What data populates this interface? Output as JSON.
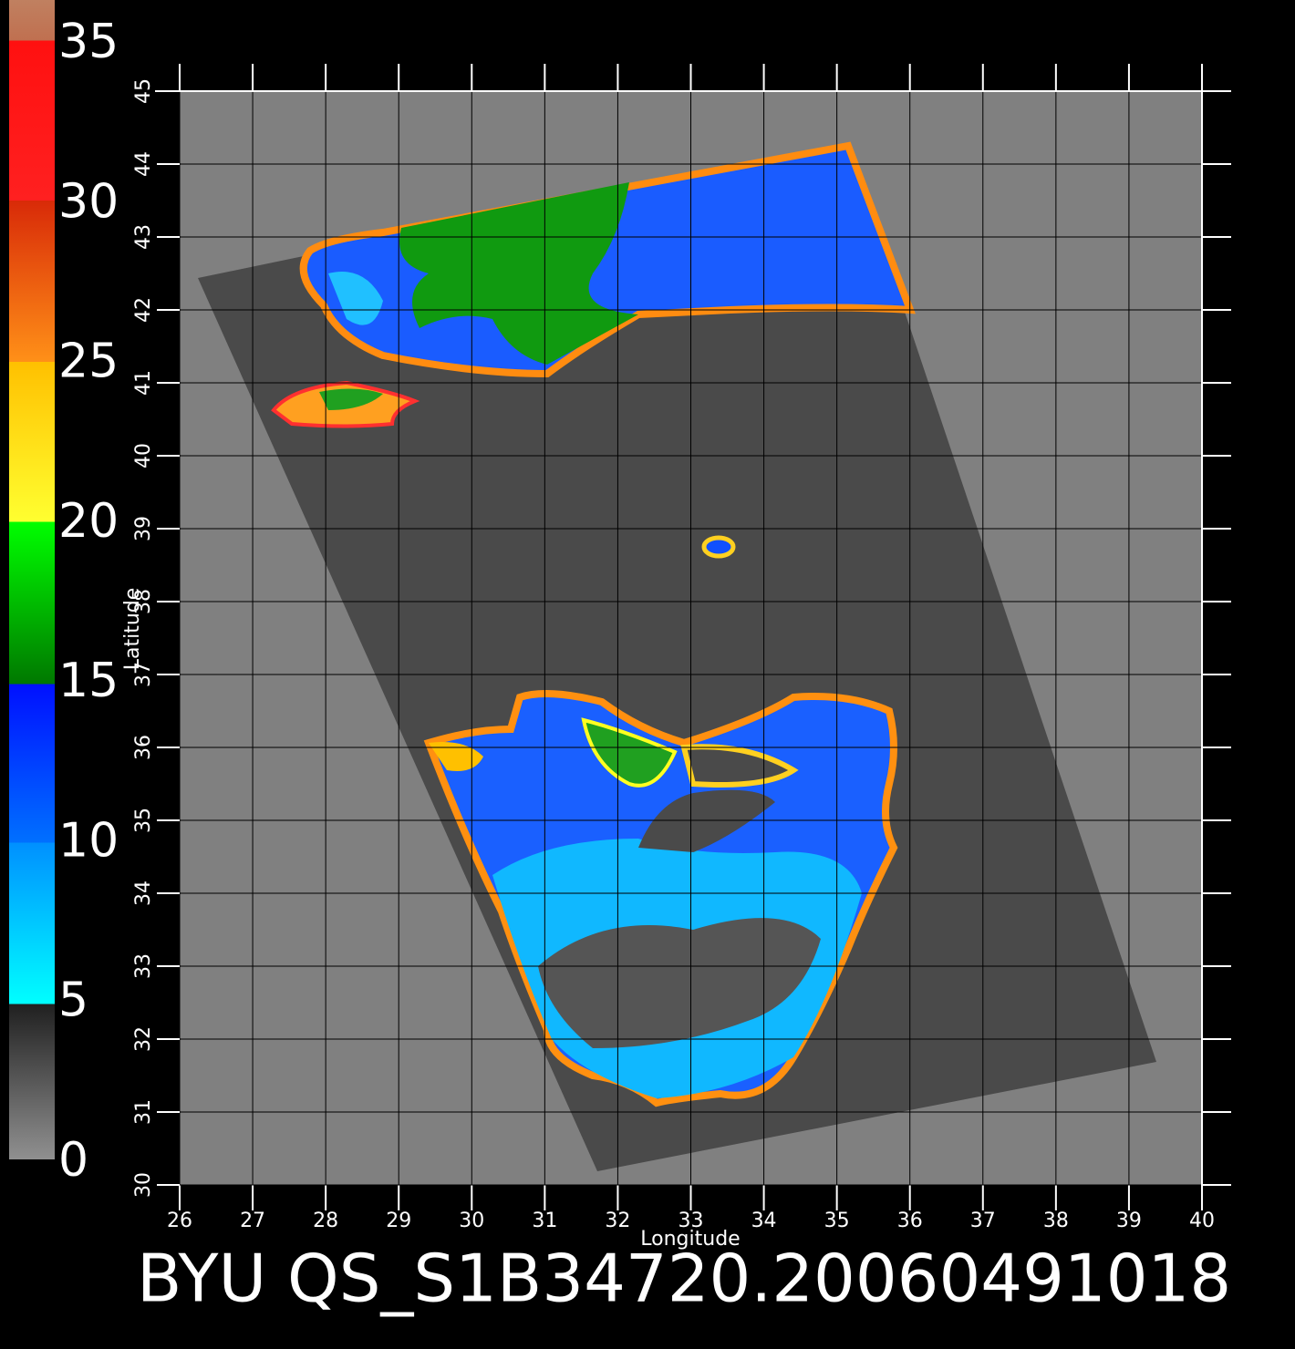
{
  "title": "BYU QS_S1B34720.20060491018",
  "colorbar": {
    "lim": [
      0,
      35
    ],
    "ticks": [
      0,
      5,
      10,
      15,
      20,
      25,
      30,
      35
    ]
  },
  "map": {
    "xlabel": "Longitude",
    "ylabel": "Latitude",
    "xlim": [
      26,
      40
    ],
    "xticks": [
      26,
      27,
      28,
      29,
      30,
      31,
      32,
      33,
      34,
      35,
      36,
      37,
      38,
      39,
      40
    ],
    "ylim": [
      30,
      45
    ],
    "yticks": [
      30,
      31,
      32,
      33,
      34,
      35,
      36,
      37,
      38,
      39,
      40,
      41,
      42,
      43,
      44,
      45
    ]
  }
}
